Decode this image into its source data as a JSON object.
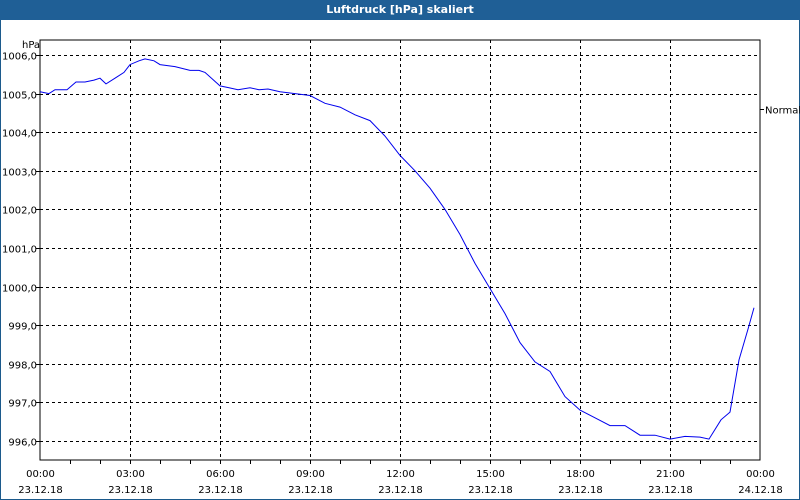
{
  "window": {
    "title": "Luftdruck [hPa] skaliert"
  },
  "chart_data": {
    "type": "line",
    "title": "Luftdruck [hPa] skaliert",
    "ylabel": "hPa",
    "xlabel": "",
    "ylim": [
      995.6,
      1006.4
    ],
    "xlim_hours": [
      0,
      24
    ],
    "grid": true,
    "y_ticks": [
      {
        "value": 1006,
        "label": "1006,0"
      },
      {
        "value": 1005,
        "label": "1005,0"
      },
      {
        "value": 1004,
        "label": "1004,0"
      },
      {
        "value": 1003,
        "label": "1003,0"
      },
      {
        "value": 1002,
        "label": "1002,0"
      },
      {
        "value": 1001,
        "label": "1001,0"
      },
      {
        "value": 1000,
        "label": "1000,0"
      },
      {
        "value": 999,
        "label": "999,0"
      },
      {
        "value": 998,
        "label": "998,0"
      },
      {
        "value": 997,
        "label": "997,0"
      },
      {
        "value": 996,
        "label": "996,0"
      }
    ],
    "x_ticks": [
      {
        "hour": 0,
        "time": "00:00",
        "date": "23.12.18"
      },
      {
        "hour": 3,
        "time": "03:00",
        "date": "23.12.18"
      },
      {
        "hour": 6,
        "time": "06:00",
        "date": "23.12.18"
      },
      {
        "hour": 9,
        "time": "09:00",
        "date": "23.12.18"
      },
      {
        "hour": 12,
        "time": "12:00",
        "date": "23.12.18"
      },
      {
        "hour": 15,
        "time": "15:00",
        "date": "23.12.18"
      },
      {
        "hour": 18,
        "time": "18:00",
        "date": "23.12.18"
      },
      {
        "hour": 21,
        "time": "21:00",
        "date": "23.12.18"
      },
      {
        "hour": 24,
        "time": "00:00",
        "date": "24.12.18"
      }
    ],
    "reference": {
      "label": "Normal",
      "value": 1004.5
    },
    "series": [
      {
        "name": "Luftdruck",
        "color": "#0000ee",
        "x": [
          0,
          0.3,
          0.5,
          0.9,
          1.2,
          1.5,
          1.8,
          2.0,
          2.2,
          2.5,
          2.8,
          3.0,
          3.3,
          3.5,
          3.8,
          4.0,
          4.5,
          5.0,
          5.3,
          5.5,
          6.0,
          6.3,
          6.6,
          7.0,
          7.3,
          7.6,
          8.0,
          8.5,
          9.0,
          9.5,
          10.0,
          10.5,
          11.0,
          11.5,
          12.0,
          12.5,
          13.0,
          13.5,
          14.0,
          14.5,
          15.0,
          15.5,
          16.0,
          16.5,
          17.0,
          17.5,
          18.0,
          18.5,
          19.0,
          19.5,
          20.0,
          20.5,
          21.0,
          21.5,
          22.0,
          22.3,
          22.7,
          23.0,
          23.3,
          23.6,
          23.8
        ],
        "values": [
          1005.05,
          1005.0,
          1005.1,
          1005.1,
          1005.3,
          1005.3,
          1005.35,
          1005.4,
          1005.25,
          1005.4,
          1005.55,
          1005.75,
          1005.85,
          1005.9,
          1005.85,
          1005.75,
          1005.7,
          1005.6,
          1005.6,
          1005.55,
          1005.2,
          1005.15,
          1005.1,
          1005.15,
          1005.1,
          1005.12,
          1005.05,
          1005.0,
          1004.95,
          1004.75,
          1004.65,
          1004.45,
          1004.3,
          1003.9,
          1003.4,
          1003.0,
          1002.55,
          1002.0,
          1001.35,
          1000.6,
          999.95,
          999.3,
          998.55,
          998.05,
          997.8,
          997.15,
          996.8,
          996.6,
          996.4,
          996.4,
          996.15,
          996.15,
          996.05,
          996.12,
          996.1,
          996.05,
          996.55,
          996.75,
          998.1,
          998.9,
          999.45
        ]
      }
    ]
  }
}
